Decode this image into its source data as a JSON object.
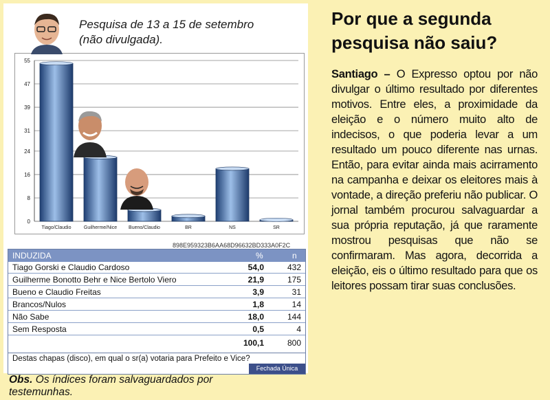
{
  "chart_note": {
    "line1": "Pesquisa de 13 a 15 de setembro",
    "line2": "(não divulgada)."
  },
  "chart_data": {
    "type": "bar",
    "categories": [
      "Tiago/Claudio",
      "Guilherme/Nice",
      "Bueno/Claudio",
      "BR",
      "NS",
      "SR"
    ],
    "values": [
      54.0,
      21.9,
      3.9,
      1.8,
      18.0,
      0.5
    ],
    "yticks": [
      0,
      8,
      16,
      24,
      31,
      39,
      47,
      55
    ],
    "ylim": [
      0,
      55
    ],
    "grid": true,
    "bar_color": "#2f5e9e"
  },
  "chart_code": "898E959323B6AA68D96632BD333A0F2C",
  "table": {
    "title": "INDUZIDA",
    "pct_header": "%",
    "n_header": "n",
    "rows": [
      {
        "label": "Tiago Gorski e Claudio Cardoso",
        "pct": "54,0",
        "n": "432"
      },
      {
        "label": "Guilherme Bonotto Behr e Nice Bertolo Viero",
        "pct": "21,9",
        "n": "175"
      },
      {
        "label": "Bueno e Claudio Freitas",
        "pct": "3,9",
        "n": "31"
      },
      {
        "label": "Brancos/Nulos",
        "pct": "1,8",
        "n": "14"
      },
      {
        "label": "Não Sabe",
        "pct": "18,0",
        "n": "144"
      },
      {
        "label": "Sem Resposta",
        "pct": "0,5",
        "n": "4"
      }
    ],
    "total_pct": "100,1",
    "total_n": "800",
    "question": "Destas chapas (disco), em qual o sr(a) votaria para Prefeito e Vice?",
    "footer": "Fechada Única"
  },
  "obs": {
    "label": "Obs.",
    "text": "Os índices foram salvaguardados por testemunhas."
  },
  "article": {
    "title": "Por que a segunda pesquisa não saiu?",
    "lead": "Santiago –",
    "body": "O Expresso optou por não divulgar o último resultado por diferentes motivos. Entre eles, a proximidade da eleição e o número muito alto de indecisos, o que poderia levar a um resultado um pouco diferente nas urnas. Então, para evitar ainda mais acirramento na campanha e deixar os eleitores mais à vontade, a direção preferiu não publicar. O jornal também procurou salvaguardar a sua própria reputação, já que raramente mostrou pesquisas que não se confirmaram. Mas agora, decorrida a eleição, eis o último resultado para que os leitores possam tirar suas conclusões."
  }
}
